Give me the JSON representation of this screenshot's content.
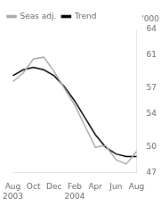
{
  "chart_data": {
    "type": "line",
    "ylabel": "'000",
    "categories": [
      "Aug 2003",
      null,
      "Oct",
      null,
      "Dec",
      null,
      "Feb 2004",
      null,
      "Apr",
      null,
      "Jun",
      null,
      "Aug"
    ],
    "series": [
      {
        "name": "Seas adj.",
        "color": "#aaaaaa",
        "values": [
          57.8,
          58.8,
          60.5,
          60.7,
          59.0,
          57.0,
          55.0,
          52.5,
          50.0,
          50.2,
          48.5,
          48.0,
          49.5
        ]
      },
      {
        "name": "Trend",
        "color": "#000000",
        "values": [
          58.5,
          59.2,
          59.5,
          59.2,
          58.5,
          57.2,
          55.5,
          53.5,
          51.5,
          50.0,
          49.2,
          48.9,
          48.9
        ]
      }
    ],
    "ylim": [
      47,
      64
    ],
    "yticks": [
      47,
      50,
      54,
      57,
      61,
      64
    ],
    "grid": false,
    "legend": "top",
    "marker": "none"
  }
}
